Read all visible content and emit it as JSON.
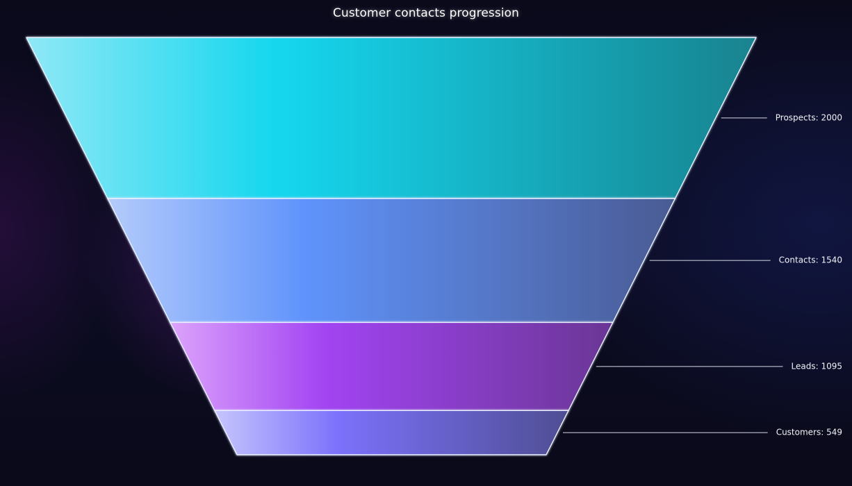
{
  "chart_data": {
    "type": "funnel",
    "title": "Customer contacts progression",
    "categories": [
      "Prospects",
      "Contacts",
      "Leads",
      "Customers"
    ],
    "values": [
      2000,
      1540,
      1095,
      549
    ],
    "labels": [
      "Prospects: 2000",
      "Contacts: 1540",
      "Leads: 1095",
      "Customers: 549"
    ],
    "colors": [
      [
        "#8fe8f6",
        "#13d6ee",
        "#1a838f"
      ],
      [
        "#b4cbfb",
        "#5f93fb",
        "#4a5b93"
      ],
      [
        "#dca3fb",
        "#a244f2",
        "#6a3695"
      ],
      [
        "#c6c5fd",
        "#7b71fb",
        "#4f4e93"
      ]
    ],
    "legend": "outside-right",
    "grid": false
  }
}
